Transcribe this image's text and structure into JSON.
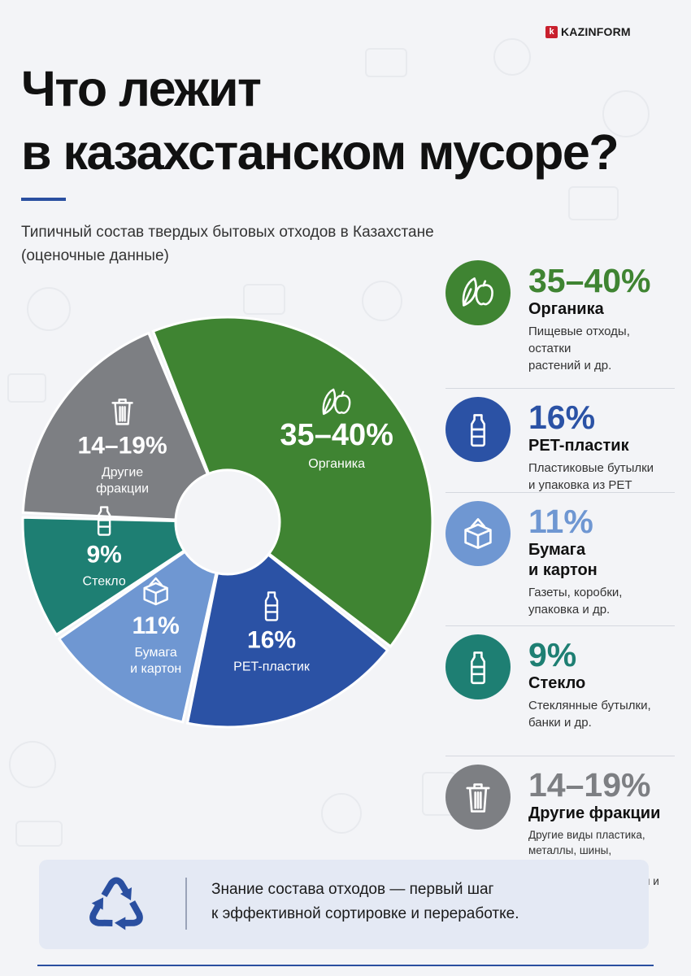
{
  "brand": {
    "mark": "k",
    "name": "KAZINFORM"
  },
  "title_lines": [
    "Что лежит",
    "в казахстанском мусоре?"
  ],
  "subtitle_lines": [
    "Типичный состав твердых бытовых отходов в Казахстане",
    "(оценочные данные)"
  ],
  "chart_data": {
    "type": "pie",
    "title": "",
    "categories": [
      "Органика",
      "PET-пластик",
      "Бумага и картон",
      "Стекло",
      "Другие фракции"
    ],
    "values": [
      37.5,
      16,
      11,
      9,
      16.5
    ],
    "value_labels": [
      "35–40%",
      "16%",
      "11%",
      "9%",
      "14–19%"
    ],
    "slice_labels": [
      [
        "Органика"
      ],
      [
        "PET-пластик"
      ],
      [
        "Бумага",
        "и картон"
      ],
      [
        "Стекло"
      ],
      [
        "Другие",
        "фракции"
      ]
    ],
    "colors": [
      "#3f8432",
      "#2b52a5",
      "#6f97d2",
      "#1e7f73",
      "#7d7f83"
    ],
    "icons": [
      "leaf-apple-icon",
      "bottle-icon",
      "box-icon",
      "bottle-icon",
      "trash-can-icon"
    ],
    "donut": true,
    "legend": "right",
    "grid": false
  },
  "legend": [
    {
      "pct": "35–40%",
      "name_lines": [
        "Органика"
      ],
      "desc_lines": [
        "Пищевые отходы, остатки",
        "растений и др."
      ],
      "color": "#3f8432",
      "icon": "leaf-apple-icon"
    },
    {
      "pct": "16%",
      "name_lines": [
        "PET-пластик"
      ],
      "desc_lines": [
        "Пластиковые бутылки",
        "и упаковка из PET"
      ],
      "color": "#2b52a5",
      "icon": "bottle-icon"
    },
    {
      "pct": "11%",
      "name_lines": [
        "Бумага",
        "и картон"
      ],
      "desc_lines": [
        "Газеты, коробки,",
        "упаковка и др."
      ],
      "color": "#6f97d2",
      "icon": "box-icon"
    },
    {
      "pct": "9%",
      "name_lines": [
        "Стекло"
      ],
      "desc_lines": [
        "Стеклянные бутылки,",
        "банки и др."
      ],
      "color": "#1e7f73",
      "icon": "bottle-icon"
    },
    {
      "pct": "14–19%",
      "name_lines": [
        "Другие фракции"
      ],
      "desc_lines": [
        "Другие виды пластика,",
        "металлы, шины, строительные",
        "и гигиенические отходы и др."
      ],
      "color": "#7d7f83",
      "icon": "trash-can-icon"
    }
  ],
  "note": {
    "icon": "recycle-icon",
    "lines": [
      "Знание состава отходов — первый шаг",
      "к эффективной сортировке и переработке."
    ],
    "icon_color": "#2a4fa0"
  }
}
